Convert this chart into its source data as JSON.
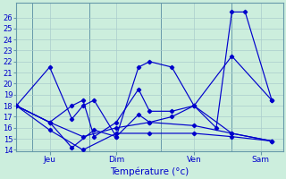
{
  "xlabel": "Température (°c)",
  "background_color": "#cceedd",
  "grid_color": "#aacccc",
  "line_color": "#0000cc",
  "spine_color": "#6699aa",
  "ylim": [
    14,
    27
  ],
  "yticks": [
    14,
    15,
    16,
    17,
    18,
    19,
    20,
    21,
    22,
    23,
    24,
    25,
    26
  ],
  "xlim": [
    0,
    12
  ],
  "xtick_labels": [
    "Jeu",
    "Dim",
    "Ven",
    "Sam"
  ],
  "xtick_positions": [
    1.5,
    4.5,
    8.0,
    11.0
  ],
  "vlines": [
    0.7,
    3.3,
    6.5,
    9.7
  ],
  "lines": [
    {
      "x": [
        0.0,
        1.5,
        3.0,
        4.5,
        6.0,
        8.0,
        9.7,
        11.5
      ],
      "y": [
        18,
        15.8,
        14.0,
        15.5,
        15.5,
        15.5,
        15.2,
        14.8
      ]
    },
    {
      "x": [
        0.0,
        1.5,
        3.0,
        4.5,
        6.0,
        8.0,
        9.7,
        11.5
      ],
      "y": [
        18,
        16.5,
        15.2,
        16.0,
        16.5,
        16.2,
        15.5,
        14.8
      ]
    },
    {
      "x": [
        0.0,
        1.5,
        2.5,
        3.0,
        3.5,
        4.5,
        5.5,
        6.0,
        7.0,
        8.0,
        9.0,
        9.7,
        10.3,
        11.5
      ],
      "y": [
        18,
        21.5,
        16.8,
        18.0,
        18.5,
        15.2,
        21.5,
        22.0,
        21.5,
        18.0,
        16.0,
        26.5,
        26.5,
        18.5
      ]
    },
    {
      "x": [
        0.0,
        1.5,
        2.5,
        3.0,
        3.5,
        4.5,
        5.5,
        6.0,
        7.0,
        8.0,
        9.7,
        11.5
      ],
      "y": [
        18,
        16.5,
        18.0,
        18.5,
        15.2,
        16.5,
        19.5,
        17.5,
        17.5,
        18.0,
        22.5,
        18.5
      ]
    },
    {
      "x": [
        0.0,
        1.5,
        2.5,
        3.5,
        4.5,
        5.5,
        6.0,
        7.0,
        8.0,
        9.7,
        11.5
      ],
      "y": [
        18,
        16.5,
        14.2,
        15.8,
        15.2,
        17.2,
        16.5,
        17.0,
        18.0,
        15.5,
        14.8
      ]
    }
  ]
}
